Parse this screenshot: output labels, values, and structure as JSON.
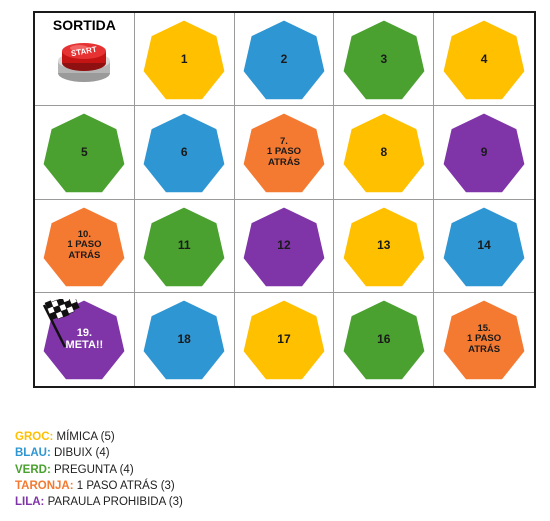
{
  "colors": {
    "yellow": "#ffc000",
    "blue": "#2e96d2",
    "green": "#4aa12f",
    "orange": "#f47a32",
    "purple": "#7f34a8"
  },
  "board": {
    "start": {
      "title": "SORTIDA",
      "button_label": "START",
      "button_icon": "red-start-button-icon"
    },
    "finish_icon": "checkered-flag-icon",
    "cells": [
      {
        "label": "1",
        "color": "yellow",
        "size": "big"
      },
      {
        "label": "2",
        "color": "blue",
        "size": "big"
      },
      {
        "label": "3",
        "color": "green",
        "size": "big"
      },
      {
        "label": "4",
        "color": "yellow",
        "size": "big"
      },
      {
        "label": "5",
        "color": "green",
        "size": "big"
      },
      {
        "label": "6",
        "color": "blue",
        "size": "big"
      },
      {
        "label": "7.\n1 PASO\nATRÁS",
        "color": "orange",
        "size": "small"
      },
      {
        "label": "8",
        "color": "yellow",
        "size": "big"
      },
      {
        "label": "9",
        "color": "purple",
        "size": "big"
      },
      {
        "label": "10.\n1 PASO\nATRÁS",
        "color": "orange",
        "size": "small"
      },
      {
        "label": "11",
        "color": "green",
        "size": "big"
      },
      {
        "label": "12",
        "color": "purple",
        "size": "big"
      },
      {
        "label": "13",
        "color": "yellow",
        "size": "big"
      },
      {
        "label": "14",
        "color": "blue",
        "size": "big"
      },
      {
        "label": "19.\nMETA!!",
        "color": "purple",
        "size": "meta"
      },
      {
        "label": "18",
        "color": "blue",
        "size": "big"
      },
      {
        "label": "17",
        "color": "yellow",
        "size": "big"
      },
      {
        "label": "16",
        "color": "green",
        "size": "big"
      },
      {
        "label": "15.\n1 PASO\nATRÁS",
        "color": "orange",
        "size": "small"
      }
    ]
  },
  "legend": [
    {
      "key": "GROC: ",
      "desc": "MÍMICA (5)",
      "color": "#ffc000"
    },
    {
      "key": "BLAU: ",
      "desc": "DIBUIX (4)",
      "color": "#2e96d2"
    },
    {
      "key": "VERD: ",
      "desc": "PREGUNTA (4)",
      "color": "#4aa12f"
    },
    {
      "key": "TARONJA: ",
      "desc": " 1 PASO ATRÁS (3)",
      "color": "#f47a32"
    },
    {
      "key": "LILA: ",
      "desc": "PARAULA PROHIBIDA (3)",
      "color": "#7f34a8"
    }
  ]
}
